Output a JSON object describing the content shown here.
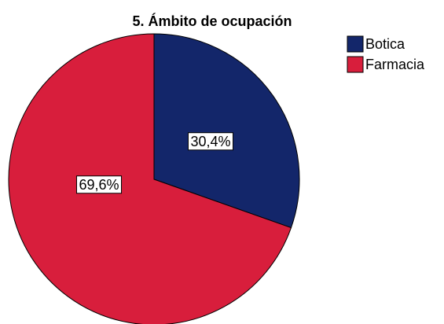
{
  "chart_data": {
    "type": "pie",
    "title": "5. Ámbito de ocupación",
    "categories": [
      "Botica",
      "Farmacia"
    ],
    "values": [
      30.4,
      69.6
    ],
    "value_labels": [
      "30,4%",
      "69,6%"
    ],
    "colors": [
      "#13266a",
      "#d81e3c"
    ],
    "legend": "right"
  }
}
